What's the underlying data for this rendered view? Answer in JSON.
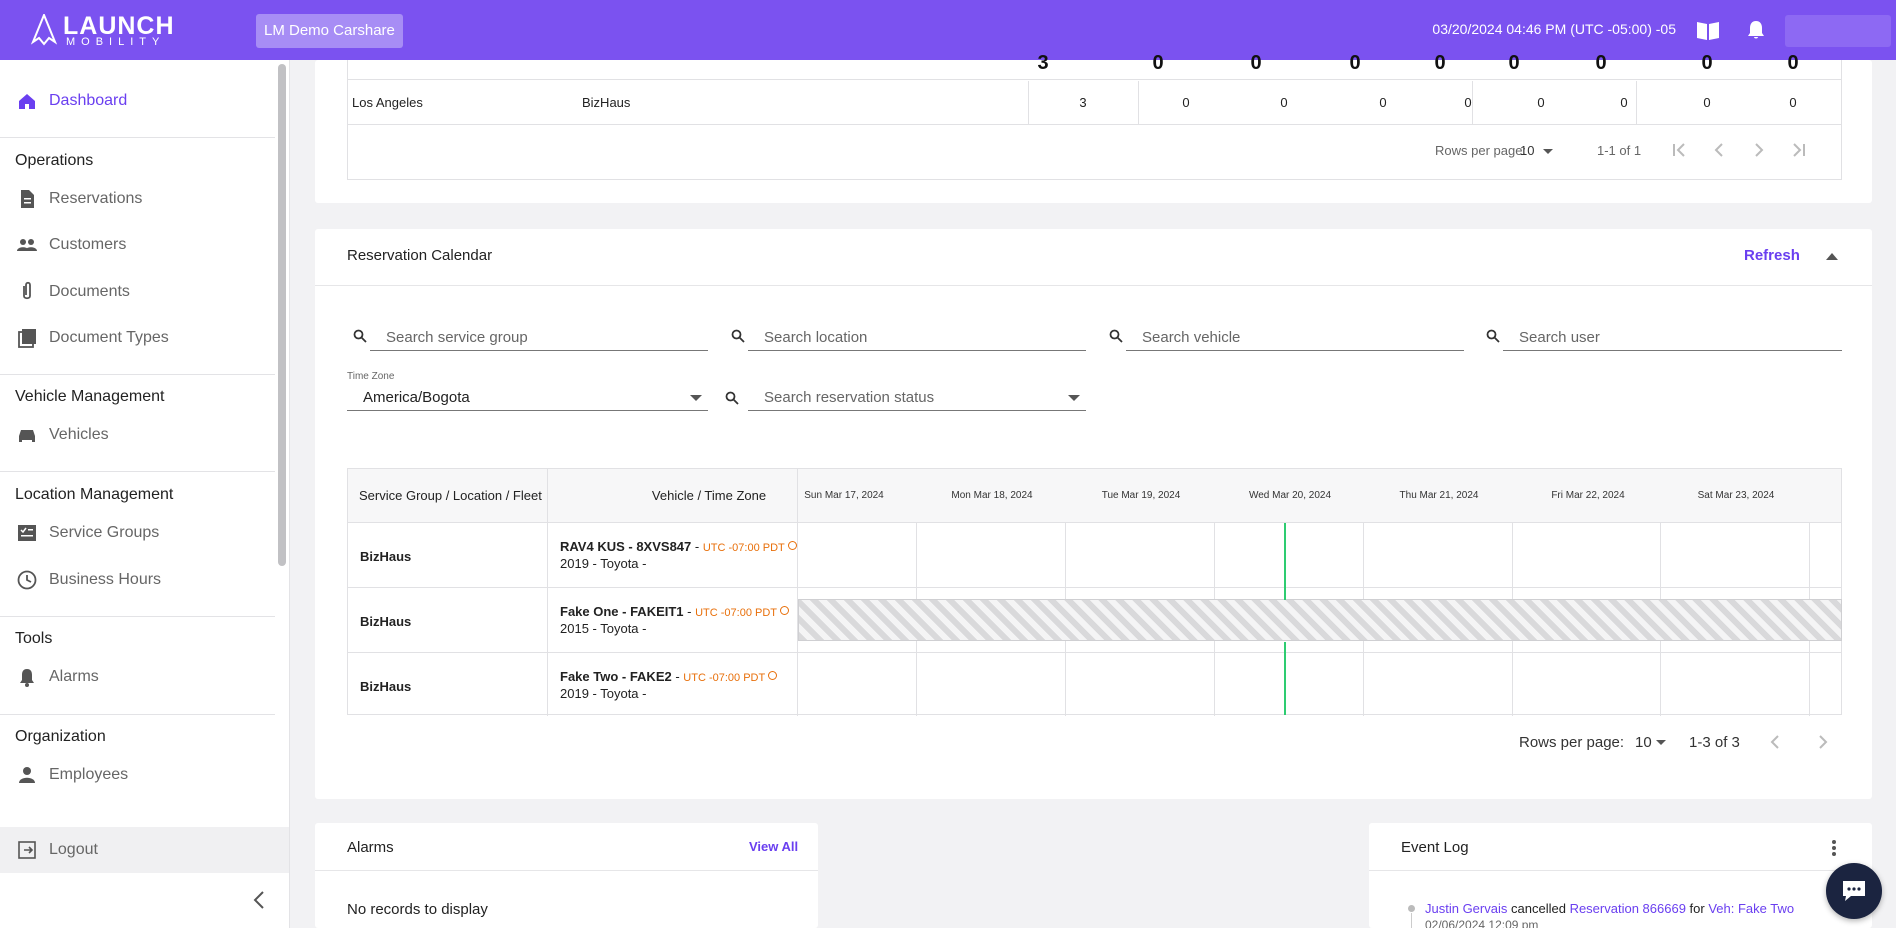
{
  "brand": {
    "name": "LAUNCH",
    "tagline": "MOBILITY"
  },
  "topbar": {
    "org": "LM Demo Carshare",
    "datetime": "03/20/2024 04:46 PM (UTC -05:00) -05"
  },
  "sidebar": {
    "dashboard": "Dashboard",
    "sections": {
      "operations": "Operations",
      "vehicle_management": "Vehicle Management",
      "location_management": "Location Management",
      "tools": "Tools",
      "organization": "Organization"
    },
    "items": {
      "reservations": "Reservations",
      "customers": "Customers",
      "documents": "Documents",
      "document_types": "Document Types",
      "vehicles": "Vehicles",
      "service_groups": "Service Groups",
      "business_hours": "Business Hours",
      "alarms": "Alarms",
      "employees": "Employees"
    },
    "logout": "Logout"
  },
  "summary_table": {
    "header_values": [
      "3",
      "0",
      "0",
      "0",
      "0",
      "0",
      "0",
      "0",
      "0"
    ],
    "row": {
      "location": "Los Angeles",
      "group": "BizHaus",
      "values": [
        "3",
        "0",
        "0",
        "0",
        "0",
        "0",
        "0",
        "0",
        "0"
      ]
    },
    "rows_per_page_label": "Rows per page:",
    "rows_per_page": "10",
    "range": "1-1 of 1"
  },
  "calendar": {
    "title": "Reservation Calendar",
    "refresh": "Refresh",
    "search": {
      "service_group": "Search service group",
      "location": "Search location",
      "vehicle": "Search vehicle",
      "user": "Search user",
      "reservation_status": "Search reservation status"
    },
    "time_zone_label": "Time Zone",
    "time_zone": "America/Bogota",
    "col_group": "Service Group / Location / Fleet",
    "col_vehicle": "Vehicle / Time Zone",
    "days": [
      "Sun Mar 17, 2024",
      "Mon Mar 18, 2024",
      "Tue Mar 19, 2024",
      "Wed Mar 20, 2024",
      "Thu Mar 21, 2024",
      "Fri Mar 22, 2024",
      "Sat Mar 23, 2024"
    ],
    "rows": [
      {
        "group": "BizHaus",
        "vehicle": "RAV4 KUS - 8XVS847",
        "tz": "UTC -07:00 PDT",
        "details": "2019 - Toyota -"
      },
      {
        "group": "BizHaus",
        "vehicle": "Fake One - FAKEIT1",
        "tz": "UTC -07:00 PDT",
        "details": "2015 - Toyota -"
      },
      {
        "group": "BizHaus",
        "vehicle": "Fake Two - FAKE2",
        "tz": "UTC -07:00 PDT",
        "details": "2019 - Toyota -"
      }
    ],
    "rows_per_page_label": "Rows per page:",
    "rows_per_page": "10",
    "range": "1-3 of 3"
  },
  "alarms": {
    "title": "Alarms",
    "view_all": "View All",
    "empty": "No records to display"
  },
  "event_log": {
    "title": "Event Log",
    "entries": [
      {
        "user": "Justin Gervais",
        "action": "cancelled",
        "target": "Reservation 866669",
        "prep": "for",
        "vehicle": "Veh: Fake Two",
        "date": "02/06/2024 12:09 pm"
      }
    ]
  },
  "colors": {
    "brand": "#7b52f0",
    "accent": "#6a3ff0",
    "today": "#2ecc71",
    "timezone": "#e86f0a"
  },
  "icons": [
    "home-icon",
    "document-icon",
    "people-icon",
    "paperclip-icon",
    "doc-types-icon",
    "car-icon",
    "checklist-icon",
    "clock-icon",
    "alarm-bell-icon",
    "person-icon",
    "logout-icon",
    "chevron-left-icon",
    "book-icon",
    "bell-icon",
    "search-icon",
    "chat-icon"
  ]
}
